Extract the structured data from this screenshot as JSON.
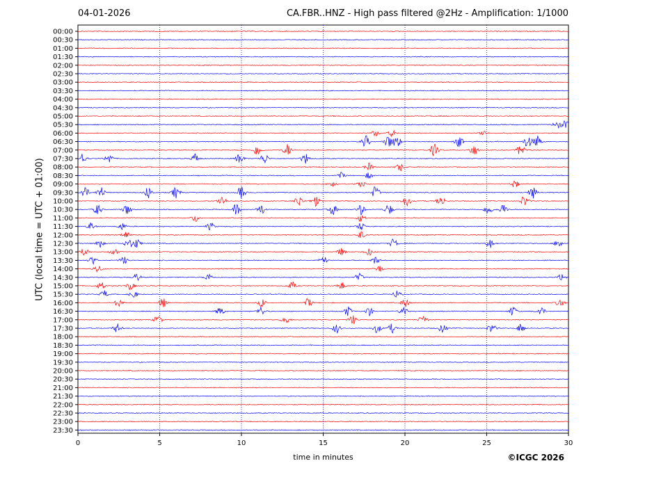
{
  "header": {
    "date": "04-01-2026",
    "title": "CA.FBR..HNZ - High pass filtered @2Hz - Amplification: 1/1000"
  },
  "footer": {
    "copyright": "©ICGC 2026"
  },
  "colors": {
    "trace_a": "#ff0000",
    "trace_b": "#0000ff",
    "grid": "#0000aa",
    "axis": "#000000"
  },
  "chart_data": {
    "type": "line",
    "title": "CA.FBR..HNZ - High pass filtered @2Hz - Amplification: 1/1000",
    "xlabel": "time in minutes",
    "ylabel": "UTC (local time = UTC + 01:00)",
    "xlim": [
      0,
      30
    ],
    "x_ticks": [
      "0",
      "5",
      "10",
      "15",
      "20",
      "25",
      "30"
    ],
    "grid": "vertical dotted at 5-minute intervals",
    "row_labels": [
      "00:00",
      "00:30",
      "01:00",
      "01:30",
      "02:00",
      "02:30",
      "03:00",
      "03:30",
      "04:00",
      "04:30",
      "05:00",
      "05:30",
      "06:00",
      "06:30",
      "07:00",
      "07:30",
      "08:00",
      "08:30",
      "09:00",
      "09:30",
      "10:00",
      "10:30",
      "11:00",
      "11:30",
      "12:00",
      "12:30",
      "13:00",
      "13:30",
      "14:00",
      "14:30",
      "15:00",
      "15:30",
      "16:00",
      "16:30",
      "17:00",
      "17:30",
      "18:00",
      "18:30",
      "19:00",
      "19:30",
      "20:00",
      "20:30",
      "21:00",
      "21:30",
      "22:00",
      "22:30",
      "23:00",
      "23:30"
    ],
    "row_colors": "alternating red (even rows) and blue (odd rows)",
    "events": [
      {
        "row": "05:30",
        "minutes": [
          29.3,
          29.8
        ],
        "amplitude": 0.25
      },
      {
        "row": "06:00",
        "minutes": [
          18.2,
          19.2,
          24.8
        ],
        "amplitude": 0.2
      },
      {
        "row": "06:30",
        "minutes": [
          17.6,
          19.0,
          19.5,
          23.3,
          27.5,
          28.1
        ],
        "amplitude": 0.4
      },
      {
        "row": "07:00",
        "minutes": [
          11.0,
          12.8,
          21.8,
          24.2,
          27.1
        ],
        "amplitude": 0.4
      },
      {
        "row": "07:30",
        "minutes": [
          0.3,
          1.9,
          7.2,
          9.9,
          11.4,
          13.9
        ],
        "amplitude": 0.35
      },
      {
        "row": "08:00",
        "minutes": [
          17.8,
          19.7
        ],
        "amplitude": 0.25
      },
      {
        "row": "08:30",
        "minutes": [
          16.1,
          17.8
        ],
        "amplitude": 0.2
      },
      {
        "row": "09:00",
        "minutes": [
          15.6,
          17.3,
          26.7
        ],
        "amplitude": 0.25
      },
      {
        "row": "09:30",
        "minutes": [
          0.4,
          1.4,
          4.3,
          6.0,
          10.0,
          18.2,
          27.8
        ],
        "amplitude": 0.4
      },
      {
        "row": "10:00",
        "minutes": [
          8.8,
          13.5,
          14.5,
          20.1,
          22.2,
          27.3
        ],
        "amplitude": 0.35
      },
      {
        "row": "10:30",
        "minutes": [
          1.2,
          3.0,
          9.7,
          11.2,
          15.6,
          17.3,
          19.0,
          25.1,
          26.0
        ],
        "amplitude": 0.35
      },
      {
        "row": "11:00",
        "minutes": [
          7.2,
          17.3
        ],
        "amplitude": 0.25
      },
      {
        "row": "11:30",
        "minutes": [
          0.8,
          2.7,
          8.1,
          17.3
        ],
        "amplitude": 0.25
      },
      {
        "row": "12:00",
        "minutes": [
          2.9,
          17.3
        ],
        "amplitude": 0.25
      },
      {
        "row": "12:30",
        "minutes": [
          1.3,
          3.1,
          3.6,
          19.3,
          25.2,
          29.4
        ],
        "amplitude": 0.3
      },
      {
        "row": "13:00",
        "minutes": [
          0.4,
          2.2,
          16.1,
          17.8
        ],
        "amplitude": 0.25
      },
      {
        "row": "13:30",
        "minutes": [
          0.9,
          2.8,
          15.0,
          18.2
        ],
        "amplitude": 0.25
      },
      {
        "row": "14:00",
        "minutes": [
          1.2,
          18.4
        ],
        "amplitude": 0.25
      },
      {
        "row": "14:30",
        "minutes": [
          3.6,
          8.0,
          17.2,
          29.6
        ],
        "amplitude": 0.25
      },
      {
        "row": "15:00",
        "minutes": [
          1.4,
          3.2,
          13.1,
          16.1
        ],
        "amplitude": 0.25
      },
      {
        "row": "15:30",
        "minutes": [
          1.6,
          3.4,
          19.5
        ],
        "amplitude": 0.25
      },
      {
        "row": "16:00",
        "minutes": [
          2.5,
          5.2,
          11.3,
          14.1,
          20.0,
          29.5
        ],
        "amplitude": 0.3
      },
      {
        "row": "16:30",
        "minutes": [
          8.7,
          11.2,
          16.5,
          17.8,
          19.9,
          26.6,
          28.3
        ],
        "amplitude": 0.3
      },
      {
        "row": "17:00",
        "minutes": [
          4.9,
          12.7,
          16.8,
          21.1
        ],
        "amplitude": 0.3
      },
      {
        "row": "17:30",
        "minutes": [
          2.4,
          15.8,
          18.3,
          19.2,
          22.3,
          25.3,
          27.1
        ],
        "amplitude": 0.3
      }
    ]
  }
}
